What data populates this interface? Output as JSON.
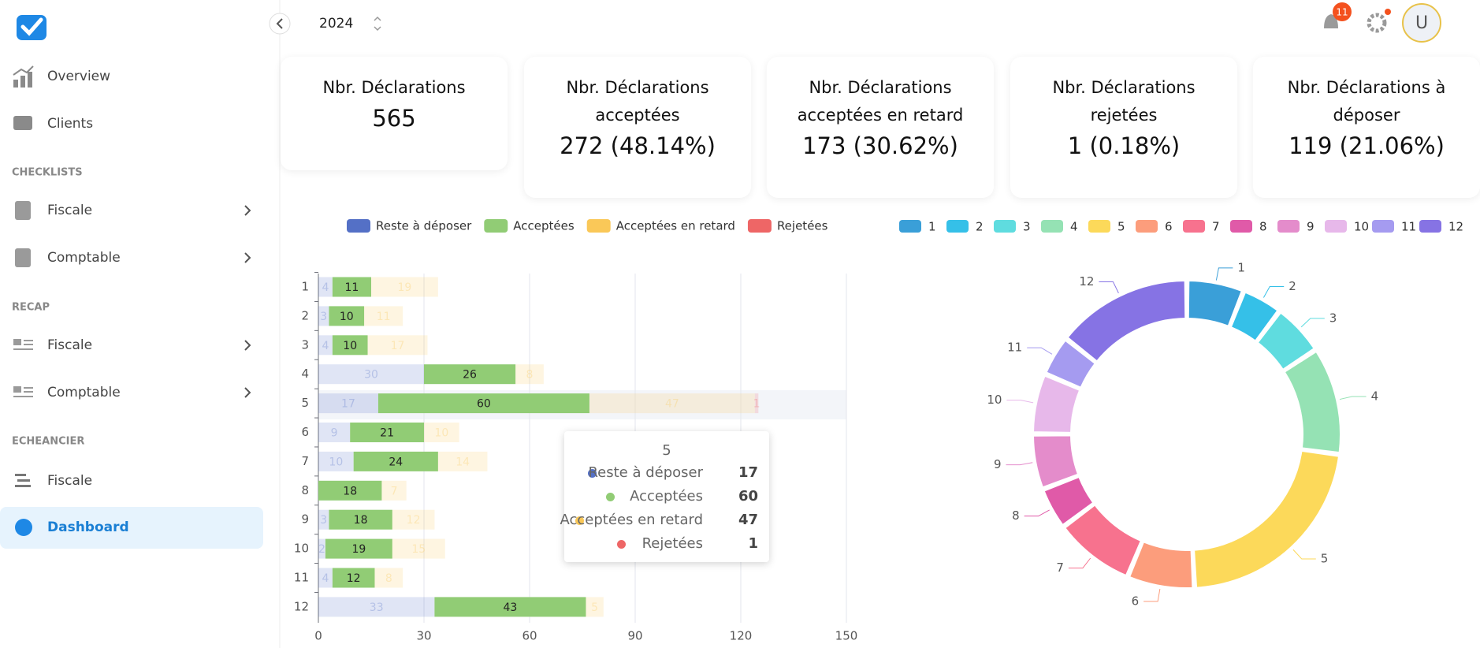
{
  "sidebar": {
    "items": [
      {
        "label": "Overview"
      },
      {
        "label": "Clients"
      }
    ],
    "sections": [
      {
        "title": "CHECKLISTS",
        "items": [
          "Fiscale",
          "Comptable"
        ]
      },
      {
        "title": "RECAP",
        "items": [
          "Fiscale",
          "Comptable"
        ]
      },
      {
        "title": "ECHEANCIER",
        "items": [
          "Fiscale"
        ]
      }
    ],
    "active": "Dashboard"
  },
  "header": {
    "year": 2024,
    "notifications": 11,
    "avatar": "U"
  },
  "cards": [
    {
      "title": "Nbr. Déclarations",
      "value": "565"
    },
    {
      "title": "Nbr. Déclarations acceptées",
      "value": "272 (48.14%)"
    },
    {
      "title": "Nbr. Déclarations acceptées en retard",
      "value": "173 (30.62%)"
    },
    {
      "title": "Nbr. Déclarations rejetées",
      "value": "1 (0.18%)"
    },
    {
      "title": "Nbr. Déclarations à déposer",
      "value": "119 (21.06%)"
    }
  ],
  "chart_data": [
    {
      "type": "bar",
      "orientation": "horizontal",
      "stacked": true,
      "categories": [
        1,
        2,
        3,
        4,
        5,
        6,
        7,
        8,
        9,
        10,
        11,
        12
      ],
      "series": [
        {
          "name": "Reste à déposer",
          "color": "#5470c6",
          "values": [
            4,
            3,
            4,
            30,
            17,
            9,
            10,
            0,
            3,
            2,
            4,
            33
          ]
        },
        {
          "name": "Acceptées",
          "color": "#91cc75",
          "values": [
            11,
            10,
            10,
            26,
            60,
            21,
            24,
            18,
            18,
            19,
            12,
            43
          ]
        },
        {
          "name": "Acceptées en retard",
          "color": "#fac858",
          "values": [
            19,
            11,
            17,
            8,
            47,
            10,
            14,
            7,
            12,
            15,
            8,
            5
          ]
        },
        {
          "name": "Rejetées",
          "color": "#ee6666",
          "values": [
            0,
            0,
            0,
            0,
            1,
            0,
            0,
            0,
            0,
            0,
            0,
            0
          ]
        }
      ],
      "xlim": [
        0,
        150
      ],
      "xticks": [
        0,
        30,
        60,
        90,
        120,
        150
      ],
      "grid": true
    },
    {
      "type": "pie",
      "donut": true,
      "categories": [
        "1",
        "2",
        "3",
        "4",
        "5",
        "6",
        "7",
        "8",
        "9",
        "10",
        "11",
        "12"
      ],
      "values": [
        34,
        24,
        31,
        64,
        125,
        40,
        48,
        25,
        33,
        36,
        24,
        81
      ],
      "colors": [
        "#3a9fd8",
        "#35c0e8",
        "#5fdcdf",
        "#95e2b4",
        "#fcd95a",
        "#fc9d7c",
        "#f7728e",
        "#e05aa8",
        "#e48ccb",
        "#e7b8ea",
        "#a59bf0",
        "#8673e4"
      ]
    }
  ]
}
